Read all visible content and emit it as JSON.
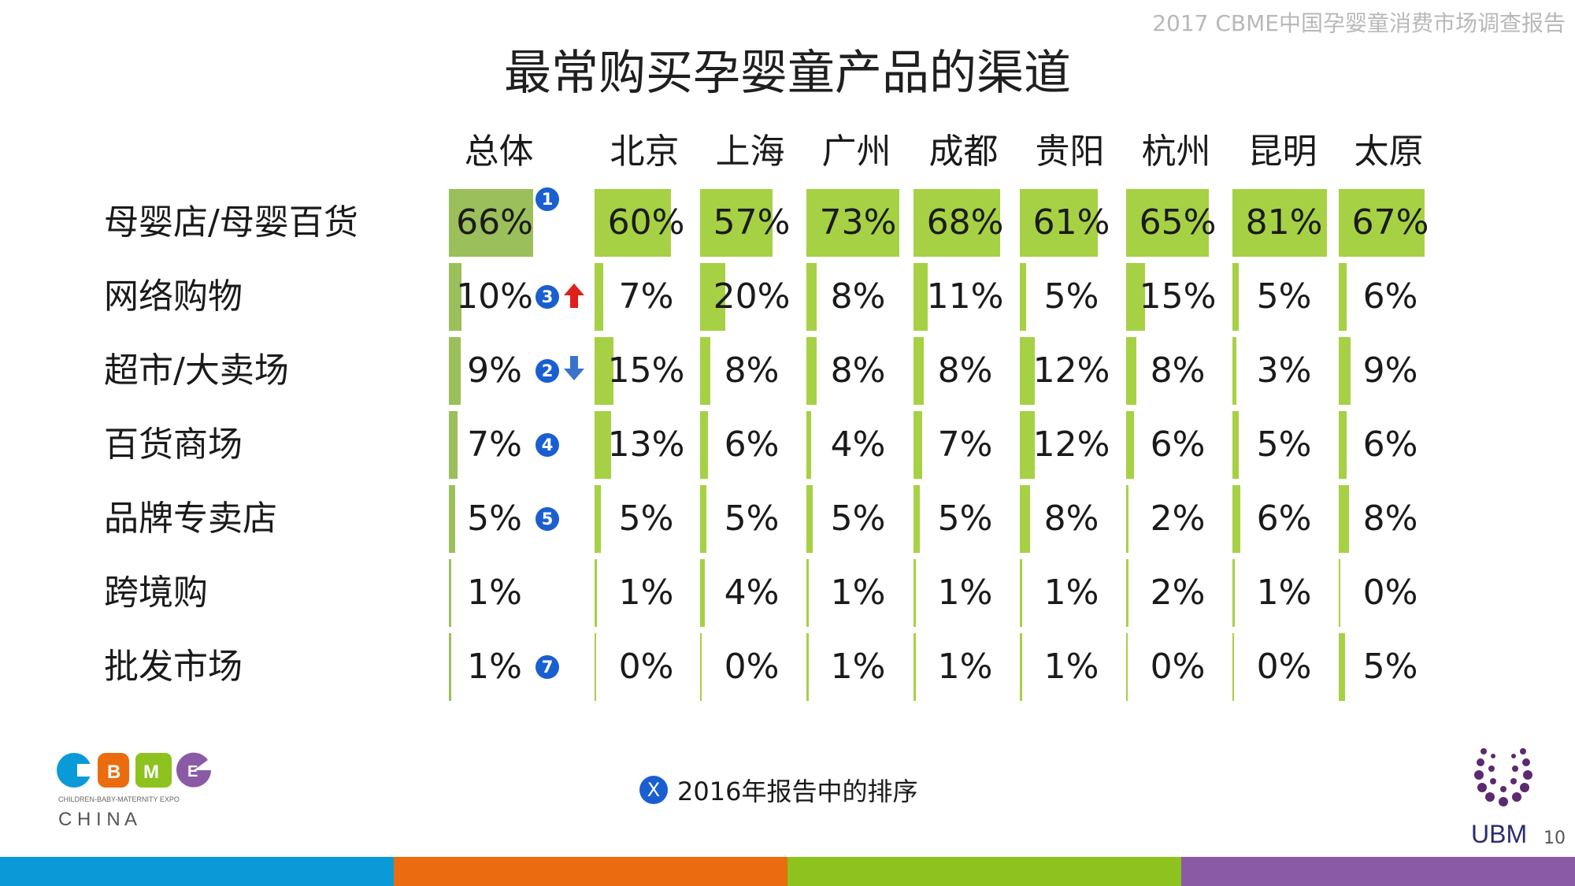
{
  "header_note": "2017 CBME中国孕婴童消费市场调查报告",
  "legend": {
    "badge": "X",
    "text": "2016年报告中的排序"
  },
  "logos": {
    "cbme_tagline": "CHILDREN-BABY-MATERNITY EXPO",
    "cbme_country": "C H I N A",
    "cbme_letters": [
      "C",
      "B",
      "M",
      "E"
    ],
    "ubm": "UBM"
  },
  "page_number": "10",
  "colors": {
    "bar_total": "#9bbf5a",
    "bar_city": "#a6d144",
    "badge": "#1a5fd0",
    "arrow_up": "#e0201a",
    "arrow_down": "#3a72cc",
    "footer": [
      "#0b9ad8",
      "#ea6c0e",
      "#8dc21f",
      "#8a5aa6"
    ]
  },
  "chart_data": {
    "type": "table",
    "title": "最常购买孕婴童产品的渠道",
    "columns": [
      "总体",
      "北京",
      "上海",
      "广州",
      "成都",
      "贵阳",
      "杭州",
      "昆明",
      "太原"
    ],
    "rows": [
      {
        "label": "母婴店/母婴百货",
        "rank_2016": "1",
        "trend": "",
        "values": [
          66,
          60,
          57,
          73,
          68,
          61,
          65,
          81,
          67
        ]
      },
      {
        "label": "网络购物",
        "rank_2016": "3",
        "trend": "up",
        "values": [
          10,
          7,
          20,
          8,
          11,
          5,
          15,
          5,
          6
        ]
      },
      {
        "label": "超市/大卖场",
        "rank_2016": "2",
        "trend": "down",
        "values": [
          9,
          15,
          8,
          8,
          8,
          12,
          8,
          3,
          9
        ]
      },
      {
        "label": "百货商场",
        "rank_2016": "4",
        "trend": "",
        "values": [
          7,
          13,
          6,
          4,
          7,
          12,
          6,
          5,
          6
        ]
      },
      {
        "label": "品牌专卖店",
        "rank_2016": "5",
        "trend": "",
        "values": [
          5,
          5,
          5,
          5,
          5,
          8,
          2,
          6,
          8
        ]
      },
      {
        "label": "跨境购",
        "rank_2016": "",
        "trend": "",
        "values": [
          1,
          1,
          4,
          1,
          1,
          1,
          2,
          1,
          0
        ]
      },
      {
        "label": "批发市场",
        "rank_2016": "7",
        "trend": "",
        "values": [
          1,
          0,
          0,
          1,
          1,
          1,
          0,
          0,
          5
        ]
      }
    ],
    "value_suffix": "%",
    "scale_max": 100
  }
}
